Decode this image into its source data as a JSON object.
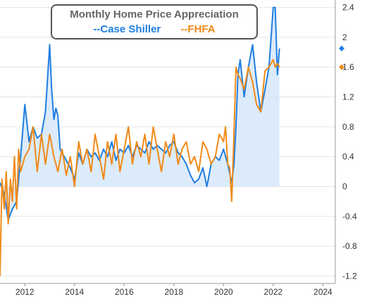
{
  "chart_data": {
    "type": "area",
    "title": "Monthly Home Price Appreciation",
    "xlabel": "",
    "ylabel": "",
    "xlim": [
      2011.0,
      2024.5
    ],
    "ylim": [
      -1.3,
      2.5
    ],
    "x_ticks": [
      2012,
      2014,
      2016,
      2018,
      2020,
      2022,
      2024
    ],
    "y_ticks": [
      -1.2,
      -0.8,
      -0.4,
      0,
      0.4,
      0.8,
      1.2,
      1.6,
      2.0,
      2.4
    ],
    "y_tick_labels": [
      "-1.2",
      "-0.8",
      "-0.4",
      "0",
      "0.4",
      "0.8",
      "1.2",
      "1.6",
      "2",
      "2.4"
    ],
    "grid": "horizontal",
    "legend": "top-left",
    "colors": {
      "case_shiller": "#1f7ee0",
      "fhfa": "#f08a18",
      "area_fill": "#d6e8fa"
    },
    "series": [
      {
        "name": "--Case Shiller",
        "x": [
          2011.0,
          2011.17,
          2011.33,
          2011.5,
          2011.67,
          2011.83,
          2012.0,
          2012.17,
          2012.33,
          2012.5,
          2012.67,
          2012.83,
          2013.0,
          2013.08,
          2013.17,
          2013.25,
          2013.33,
          2013.42,
          2013.5,
          2013.67,
          2013.83,
          2014.0,
          2014.17,
          2014.33,
          2014.5,
          2014.67,
          2014.83,
          2015.0,
          2015.17,
          2015.33,
          2015.5,
          2015.67,
          2015.83,
          2016.0,
          2016.17,
          2016.33,
          2016.5,
          2016.67,
          2016.83,
          2017.0,
          2017.17,
          2017.33,
          2017.5,
          2017.67,
          2017.83,
          2018.0,
          2018.17,
          2018.33,
          2018.5,
          2018.67,
          2018.83,
          2019.0,
          2019.17,
          2019.33,
          2019.5,
          2019.67,
          2019.83,
          2020.0,
          2020.17,
          2020.33,
          2020.42,
          2020.5,
          2020.58,
          2020.67,
          2020.83,
          2021.0,
          2021.17,
          2021.33,
          2021.5,
          2021.67,
          2021.83,
          2022.0,
          2022.08,
          2022.17,
          2022.25
        ],
        "values": [
          0.05,
          -0.1,
          -0.45,
          -0.3,
          -0.2,
          0.4,
          1.1,
          0.6,
          0.8,
          0.65,
          0.7,
          1.0,
          1.9,
          1.3,
          0.9,
          1.05,
          0.95,
          0.5,
          0.45,
          0.35,
          0.25,
          0.1,
          0.45,
          0.3,
          0.5,
          0.4,
          0.45,
          0.35,
          0.5,
          0.4,
          0.6,
          0.35,
          0.5,
          0.45,
          0.55,
          0.4,
          0.55,
          0.5,
          0.45,
          0.6,
          0.5,
          0.55,
          0.5,
          0.45,
          0.55,
          0.6,
          0.45,
          0.4,
          0.3,
          0.15,
          0.05,
          0.1,
          0.25,
          0.0,
          0.3,
          0.4,
          0.35,
          0.5,
          0.3,
          0.05,
          0.3,
          0.8,
          1.5,
          1.7,
          1.2,
          1.6,
          1.9,
          1.4,
          1.0,
          1.3,
          1.6,
          2.4,
          2.4,
          1.5,
          1.85
        ]
      },
      {
        "name": "--FHFA",
        "x": [
          2011.0,
          2011.08,
          2011.17,
          2011.25,
          2011.33,
          2011.42,
          2011.5,
          2011.58,
          2011.67,
          2011.75,
          2011.83,
          2012.0,
          2012.17,
          2012.33,
          2012.5,
          2012.67,
          2012.83,
          2013.0,
          2013.17,
          2013.33,
          2013.5,
          2013.67,
          2013.83,
          2014.0,
          2014.17,
          2014.33,
          2014.5,
          2014.67,
          2014.83,
          2015.0,
          2015.17,
          2015.33,
          2015.5,
          2015.67,
          2015.83,
          2016.0,
          2016.17,
          2016.33,
          2016.5,
          2016.67,
          2016.83,
          2017.0,
          2017.17,
          2017.33,
          2017.5,
          2017.67,
          2017.83,
          2018.0,
          2018.17,
          2018.33,
          2018.5,
          2018.67,
          2018.83,
          2019.0,
          2019.17,
          2019.33,
          2019.5,
          2019.67,
          2019.83,
          2020.0,
          2020.08,
          2020.17,
          2020.25,
          2020.33,
          2020.42,
          2020.5,
          2020.58,
          2020.67,
          2020.83,
          2021.0,
          2021.17,
          2021.33,
          2021.5,
          2021.67,
          2021.83,
          2022.0,
          2022.08,
          2022.17,
          2022.25
        ],
        "values": [
          -1.2,
          0.1,
          -0.3,
          0.2,
          -0.5,
          0.1,
          -0.2,
          0.4,
          -0.3,
          0.5,
          0.2,
          0.4,
          0.5,
          0.8,
          0.2,
          0.7,
          0.3,
          0.7,
          0.4,
          0.2,
          0.5,
          0.15,
          0.4,
          0.0,
          0.6,
          0.3,
          0.5,
          0.2,
          0.7,
          0.4,
          0.1,
          0.6,
          0.3,
          0.7,
          0.2,
          0.5,
          0.8,
          0.3,
          0.6,
          0.4,
          0.7,
          0.3,
          0.8,
          0.5,
          0.2,
          0.6,
          0.4,
          0.7,
          0.3,
          0.5,
          0.6,
          0.3,
          0.4,
          0.2,
          0.6,
          0.5,
          0.3,
          0.4,
          0.7,
          0.6,
          0.8,
          0.3,
          0.25,
          -0.2,
          0.7,
          1.6,
          1.5,
          1.45,
          1.3,
          1.6,
          1.4,
          1.1,
          1.0,
          1.55,
          1.6,
          1.7,
          1.6,
          1.65,
          1.6
        ]
      }
    ]
  }
}
